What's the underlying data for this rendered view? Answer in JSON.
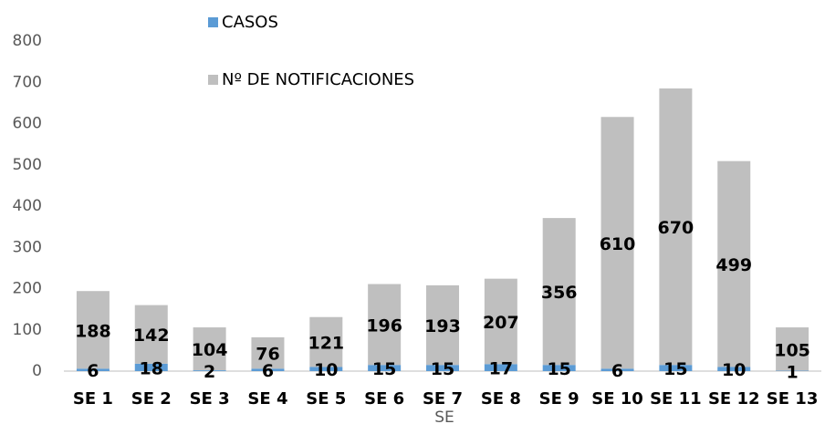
{
  "chart_data": {
    "type": "stacked_bar",
    "categories": [
      "SE 1",
      "SE 2",
      "SE 3",
      "SE 4",
      "SE 5",
      "SE 6",
      "SE 7",
      "SE 8",
      "SE 9",
      "SE 10",
      "SE 11",
      "SE 12",
      "SE 13"
    ],
    "series": [
      {
        "name": "CASOS",
        "color": "#5b9bd5",
        "values": [
          6,
          18,
          2,
          6,
          10,
          15,
          15,
          17,
          15,
          6,
          15,
          10,
          1
        ]
      },
      {
        "name": "Nº DE NOTIFICACIONES",
        "color": "#bfbfbf",
        "values": [
          188,
          142,
          104,
          76,
          121,
          196,
          193,
          207,
          356,
          610,
          670,
          499,
          105
        ]
      }
    ],
    "x_label": "SE",
    "ylim": [
      0,
      800
    ],
    "yticks": [
      0,
      100,
      200,
      300,
      400,
      500,
      600,
      700,
      800
    ],
    "grid": false,
    "legend": "top"
  }
}
